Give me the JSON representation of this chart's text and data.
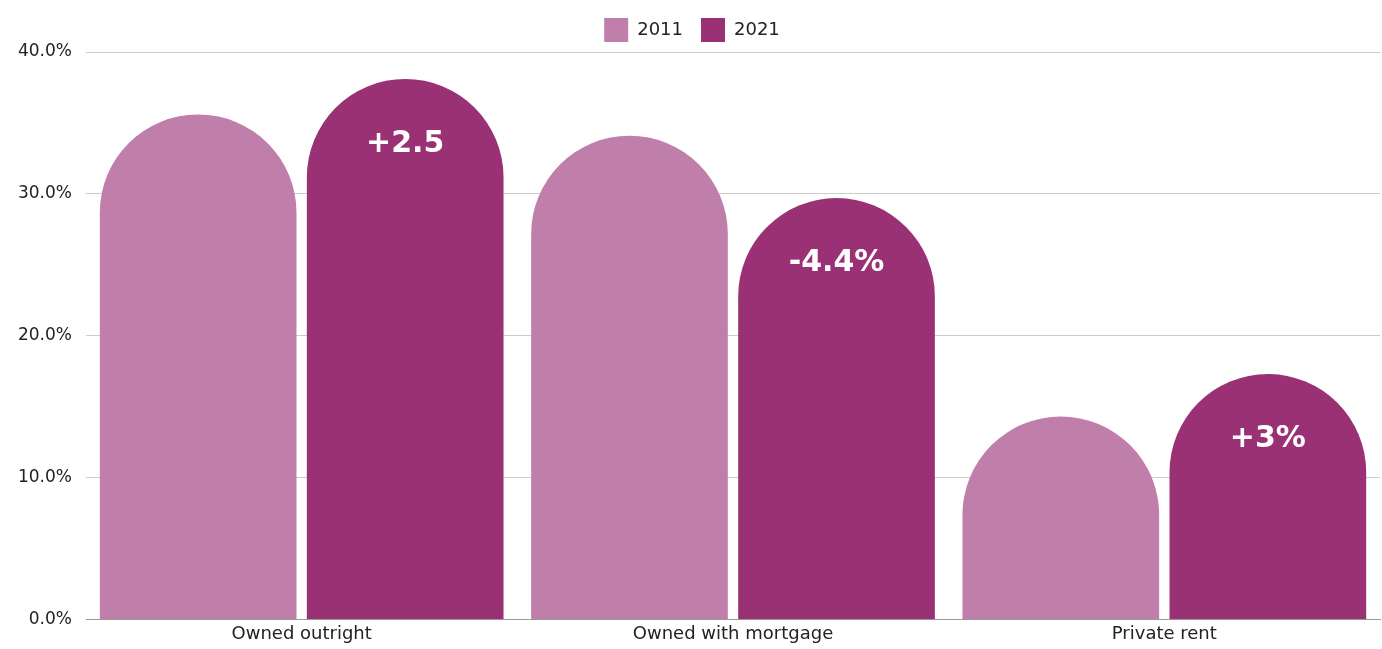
{
  "chart_data": {
    "type": "bar",
    "categories": [
      "Owned outright",
      "Owned with mortgage",
      "Private rent"
    ],
    "series": [
      {
        "name": "2011",
        "color": "#c07fab",
        "values": [
          35.6,
          34.1,
          14.3
        ]
      },
      {
        "name": "2021",
        "color": "#993174",
        "values": [
          38.1,
          29.7,
          17.3
        ]
      }
    ],
    "ylim": [
      0,
      40
    ],
    "yticks": [
      {
        "value": 0,
        "label": "0.0%"
      },
      {
        "value": 10,
        "label": "10.0%"
      },
      {
        "value": 20,
        "label": "20.0%"
      },
      {
        "value": 30,
        "label": "30.0%"
      },
      {
        "value": 40,
        "label": "40.0%"
      }
    ],
    "grid": "y",
    "legend": "top",
    "annotations": [
      "+2.5",
      "-4.4%",
      "+3%"
    ]
  }
}
